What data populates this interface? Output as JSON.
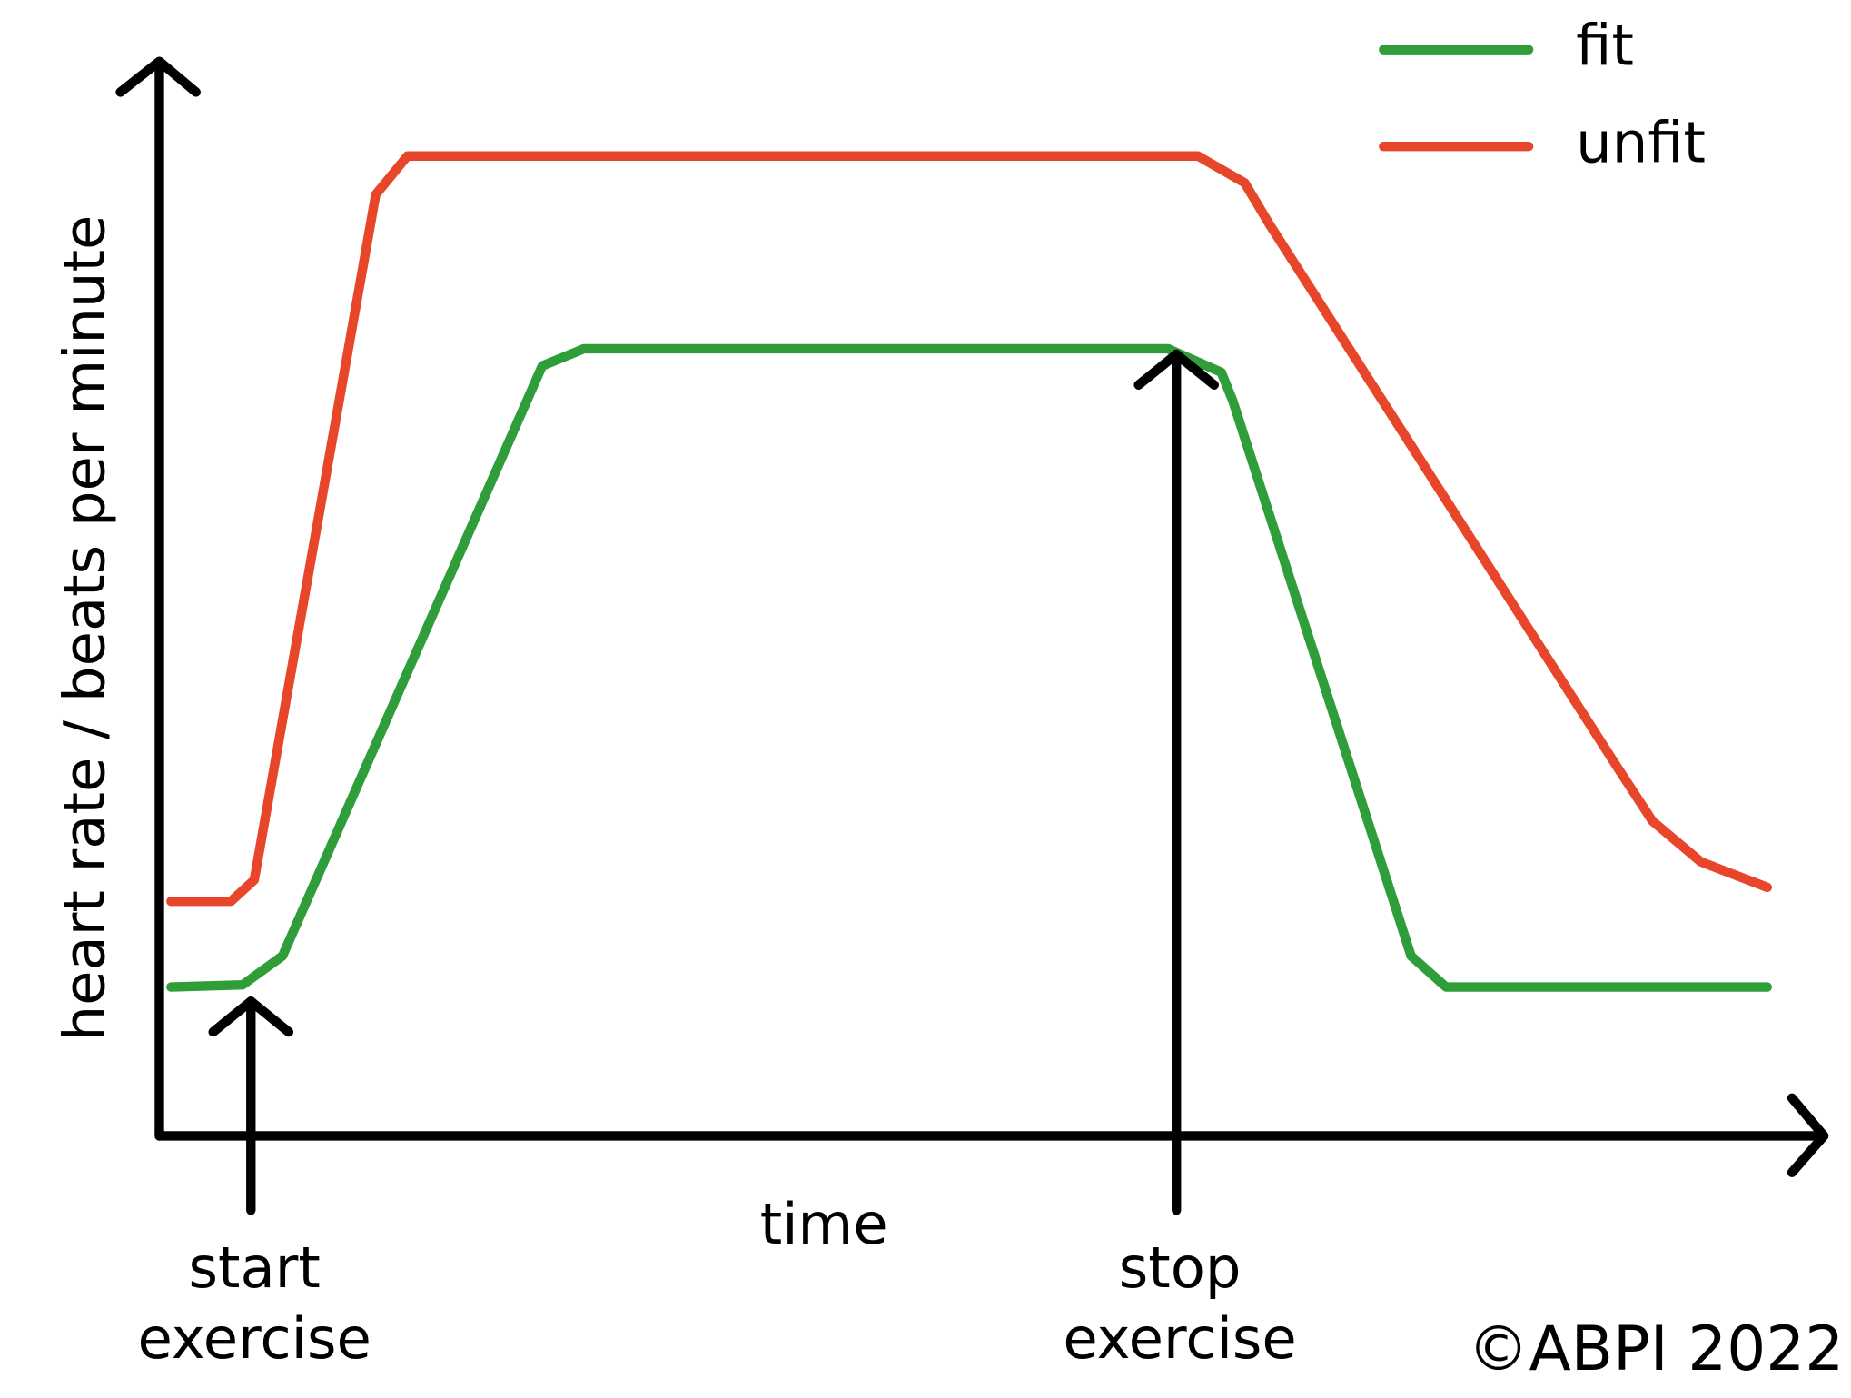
{
  "chart_data": {
    "type": "line",
    "y_label": "heart rate / beats per minute",
    "x_label": "time",
    "xlim": [
      0,
      100
    ],
    "ylim": [
      0,
      100
    ],
    "legend": "top-right",
    "series": [
      {
        "name": "fit",
        "color": "#2f9e3a",
        "x": [
          0.7,
          5.0,
          7.4,
          23.0,
          25.5,
          60.6,
          63.8,
          64.5,
          75.2,
          77.3,
          96.6
        ],
        "values": [
          13.9,
          14.1,
          16.8,
          71.9,
          73.5,
          73.5,
          71.3,
          68.6,
          16.8,
          13.9,
          13.9
        ]
      },
      {
        "name": "unfit",
        "color": "#e8462a",
        "x": [
          0.7,
          4.3,
          5.7,
          13.0,
          14.9,
          62.4,
          65.2,
          66.7,
          87.6,
          89.7,
          92.6,
          96.6
        ],
        "values": [
          21.9,
          21.9,
          23.9,
          87.9,
          91.5,
          91.5,
          89.0,
          85.1,
          34.4,
          29.4,
          25.6,
          23.2
        ]
      }
    ],
    "annotations": [
      {
        "lines": [
          "start",
          "exercise"
        ],
        "x": 5.5
      },
      {
        "lines": [
          "stop",
          "exercise"
        ],
        "x": 61.1
      }
    ],
    "copyright": "©ABPI 2022"
  }
}
